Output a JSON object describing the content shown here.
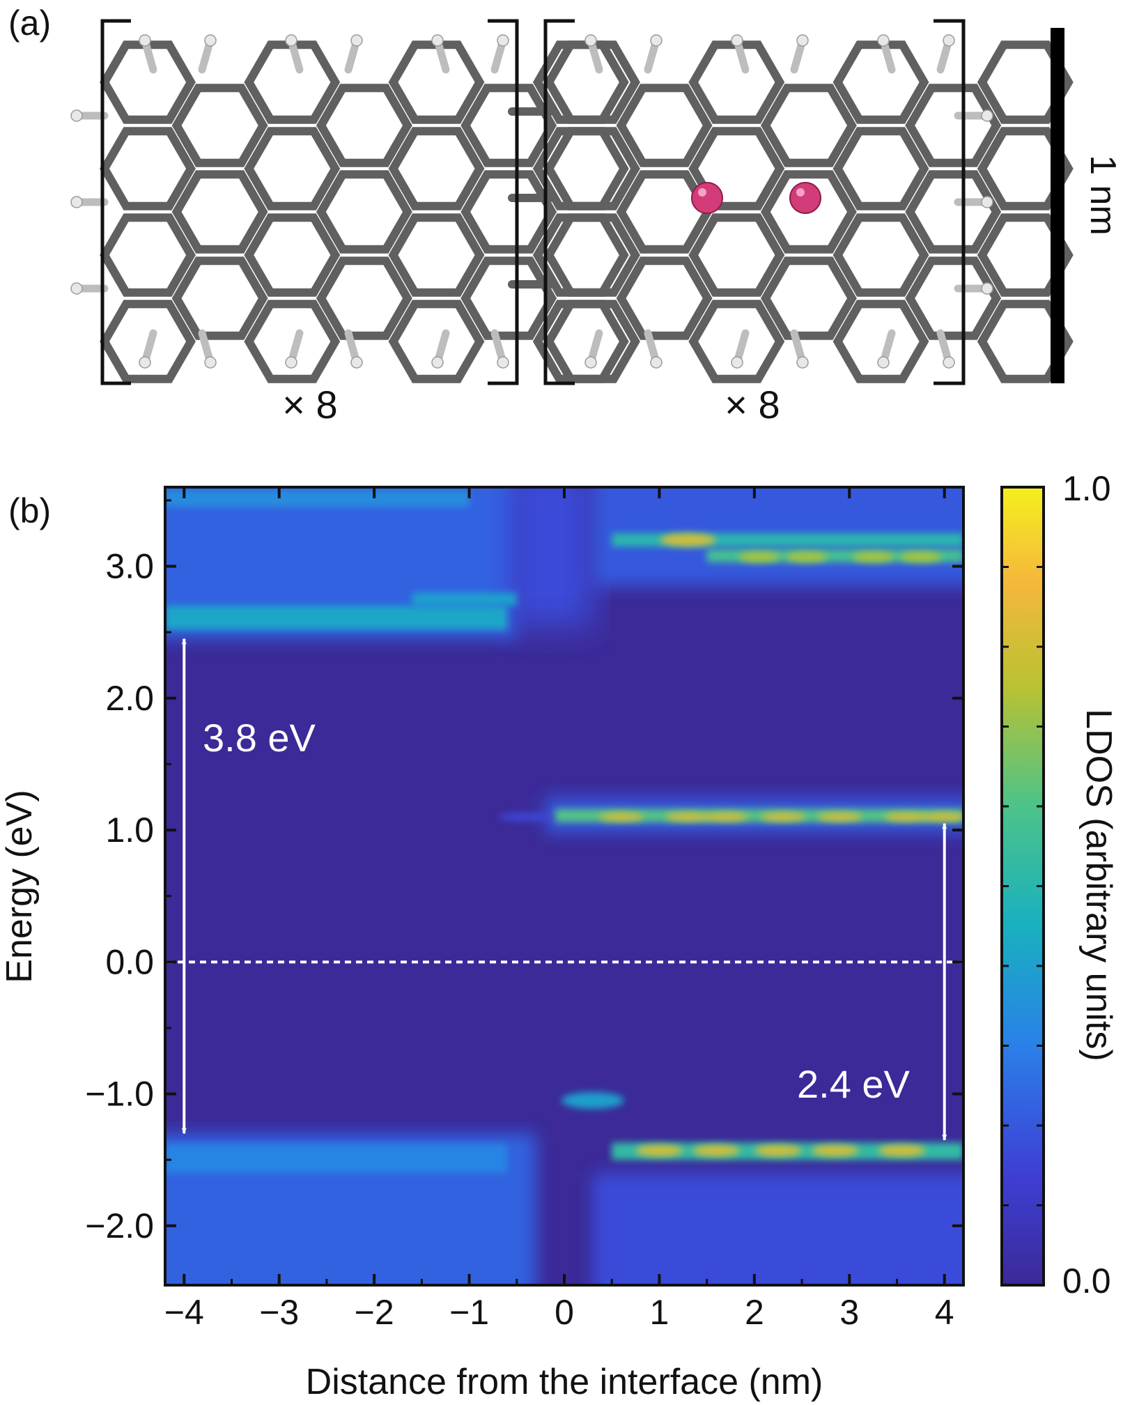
{
  "panel_a": {
    "label": "(a)",
    "left_multiplier": "× 8",
    "right_multiplier": "× 8",
    "scale_bar_label": "1 nm",
    "colors": {
      "carbon": "#606060",
      "hydrogen": "#e8e8e8",
      "dopant": "#d23c78"
    }
  },
  "panel_b": {
    "label": "(b)",
    "colorbar_label": "LDOS (arbitrary units)",
    "colorbar_max": "1.0",
    "colorbar_min": "0.0",
    "annotations": {
      "left_gap": "3.8 eV",
      "right_gap": "2.4 eV"
    }
  },
  "chart_data": {
    "type": "heatmap",
    "xlabel": "Distance from the interface (nm)",
    "ylabel": "Energy (eV)",
    "xlim": [
      -4.2,
      4.2
    ],
    "ylim": [
      -2.45,
      3.6
    ],
    "xticks": [
      -4,
      -3,
      -2,
      -1,
      0,
      1,
      2,
      3,
      4
    ],
    "xtick_labels": [
      "−4",
      "−3",
      "−2",
      "−1",
      "0",
      "1",
      "2",
      "3",
      "4"
    ],
    "yticks": [
      -2.0,
      -1.0,
      0.0,
      1.0,
      2.0,
      3.0
    ],
    "ytick_labels": [
      "−2.0",
      "−1.0",
      "0.0",
      "1.0",
      "2.0",
      "3.0"
    ],
    "colorbar_range": [
      0.0,
      1.0
    ],
    "colormap": [
      "#3b2a98",
      "#3e3fd6",
      "#2a80e8",
      "#19b0c0",
      "#4cc38a",
      "#b9c232",
      "#f5b73c",
      "#f5f01e"
    ],
    "fermi_level": 0.0,
    "gaps": [
      {
        "label": "3.8 eV",
        "x": -4.0,
        "from": -1.3,
        "to": 2.45
      },
      {
        "label": "2.4 eV",
        "x": 4.0,
        "from": -1.35,
        "to": 1.05
      }
    ],
    "bands": [
      {
        "name": "left conduction",
        "x_from": -4.2,
        "x_to": -0.3,
        "energy": 2.6,
        "intensity": 0.45
      },
      {
        "name": "right conduction",
        "x_from": 0.5,
        "x_to": 4.2,
        "energy": 3.1,
        "intensity": 0.7
      },
      {
        "name": "defect band",
        "x_from": -0.3,
        "x_to": 4.2,
        "energy": 1.1,
        "intensity": 0.8
      },
      {
        "name": "interface state",
        "x_from": -0.1,
        "x_to": 0.6,
        "energy": -1.05,
        "intensity": 0.45
      },
      {
        "name": "left valence",
        "x_from": -4.2,
        "x_to": -0.3,
        "energy": -1.5,
        "intensity": 0.35
      },
      {
        "name": "right valence",
        "x_from": 0.5,
        "x_to": 4.2,
        "energy": -1.45,
        "intensity": 0.8
      }
    ]
  }
}
